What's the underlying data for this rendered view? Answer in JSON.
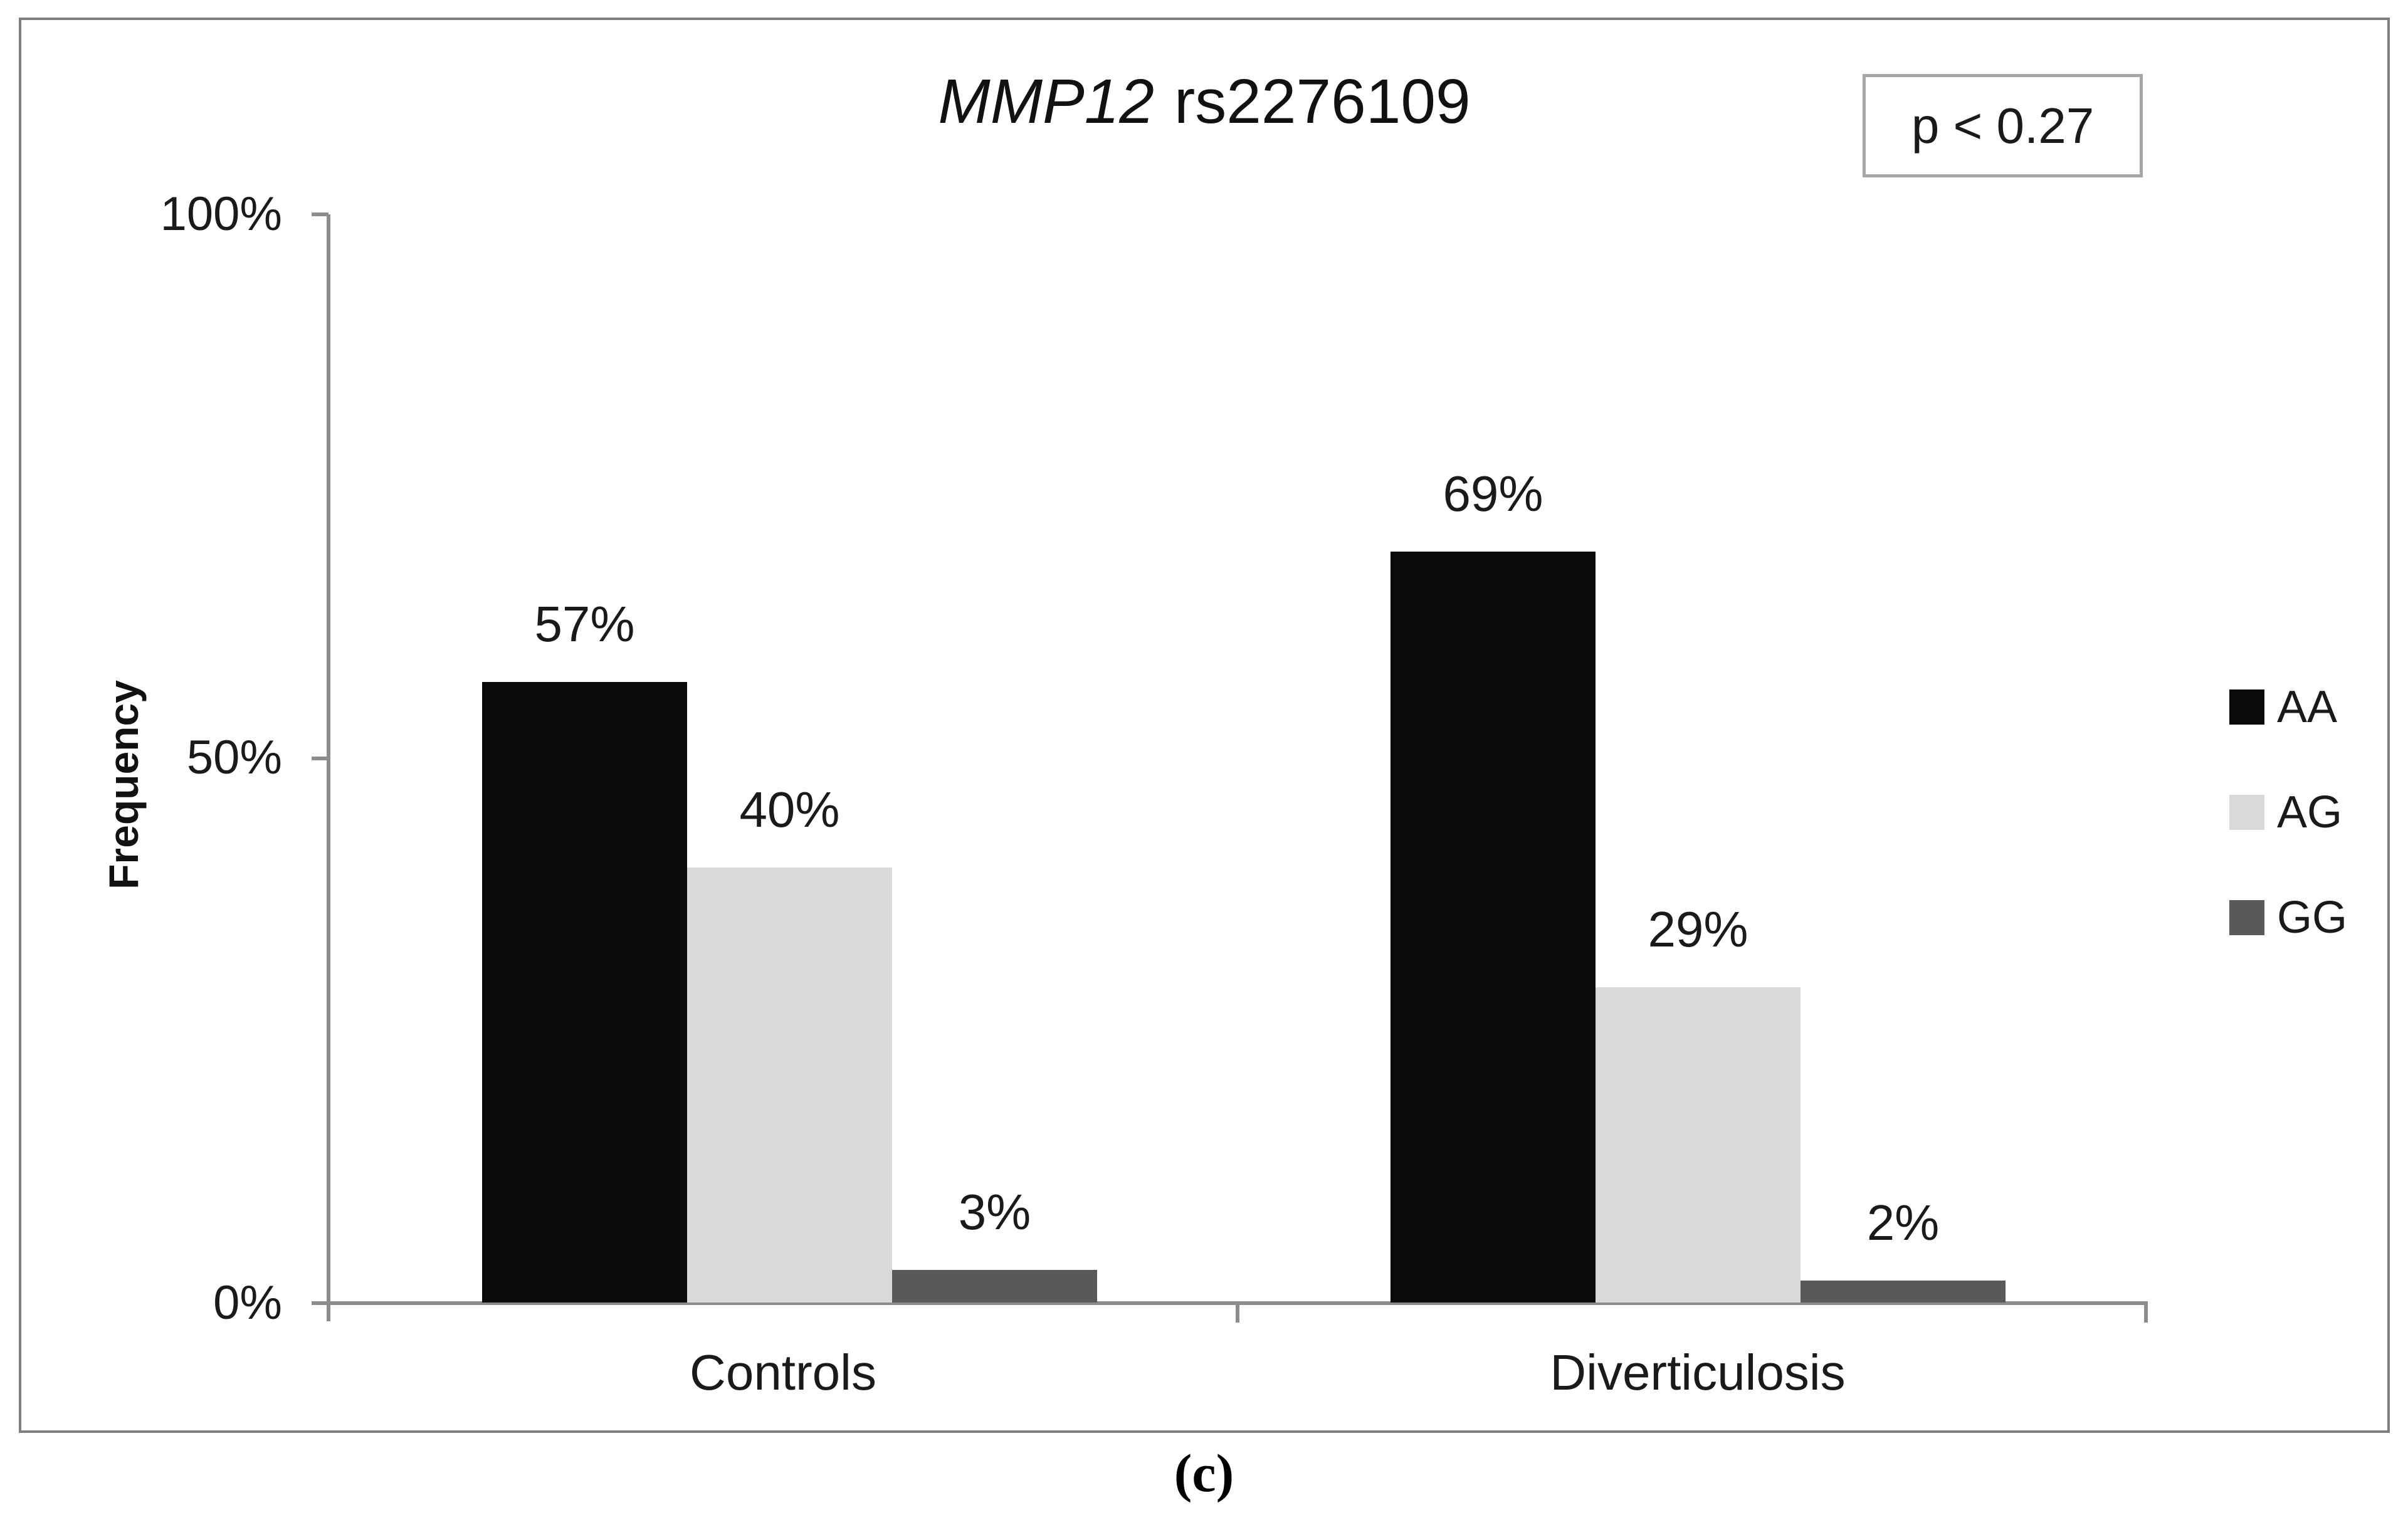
{
  "figure": {
    "title": {
      "gene": "MMP12",
      "variant": "rs2276109"
    },
    "p_value": "p < 0.27",
    "caption": "(c)"
  },
  "y_axis": {
    "label": "Frequency",
    "ticks": [
      "100%",
      "50%",
      "0%"
    ]
  },
  "chart_data": {
    "type": "bar",
    "title": "MMP12 rs2276109",
    "xlabel": "",
    "ylabel": "Frequency",
    "ylim": [
      0,
      100
    ],
    "ytick_values": [
      0,
      50,
      100
    ],
    "ytick_labels": [
      "0%",
      "50%",
      "100%"
    ],
    "grid": false,
    "legend_position": "right",
    "annotation": "p < 0.27",
    "categories": [
      "Controls",
      "Diverticulosis"
    ],
    "series": [
      {
        "name": "AA",
        "color": "#0a0a0a",
        "values": [
          57,
          69
        ],
        "labels": [
          "57%",
          "69%"
        ]
      },
      {
        "name": "AG",
        "color": "#d9d9d9",
        "values": [
          40,
          29
        ],
        "labels": [
          "40%",
          "29%"
        ]
      },
      {
        "name": "GG",
        "color": "#595959",
        "values": [
          3,
          2
        ],
        "labels": [
          "3%",
          "2%"
        ]
      }
    ]
  },
  "colors": {
    "axis": "#8c8c8c",
    "frame_border": "#7f7f7f",
    "p_box_border": "#a6a6a6",
    "text": "#1a1a1a"
  }
}
